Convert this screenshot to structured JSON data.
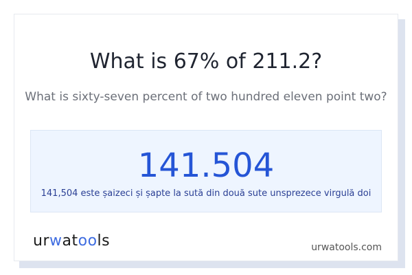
{
  "question": {
    "title": "What is 67% of 211.2?",
    "subtitle": "What is sixty-seven percent of two hundred eleven point two?"
  },
  "answer": {
    "value": "141.504",
    "words": "141,504 este șaizeci și șapte la sută din două sute unsprezece virgulă doi"
  },
  "footer": {
    "logo": "urwatools",
    "site": "urwatools.com"
  },
  "colors": {
    "accent": "#2555d6",
    "answer_bg": "#eef5ff"
  }
}
